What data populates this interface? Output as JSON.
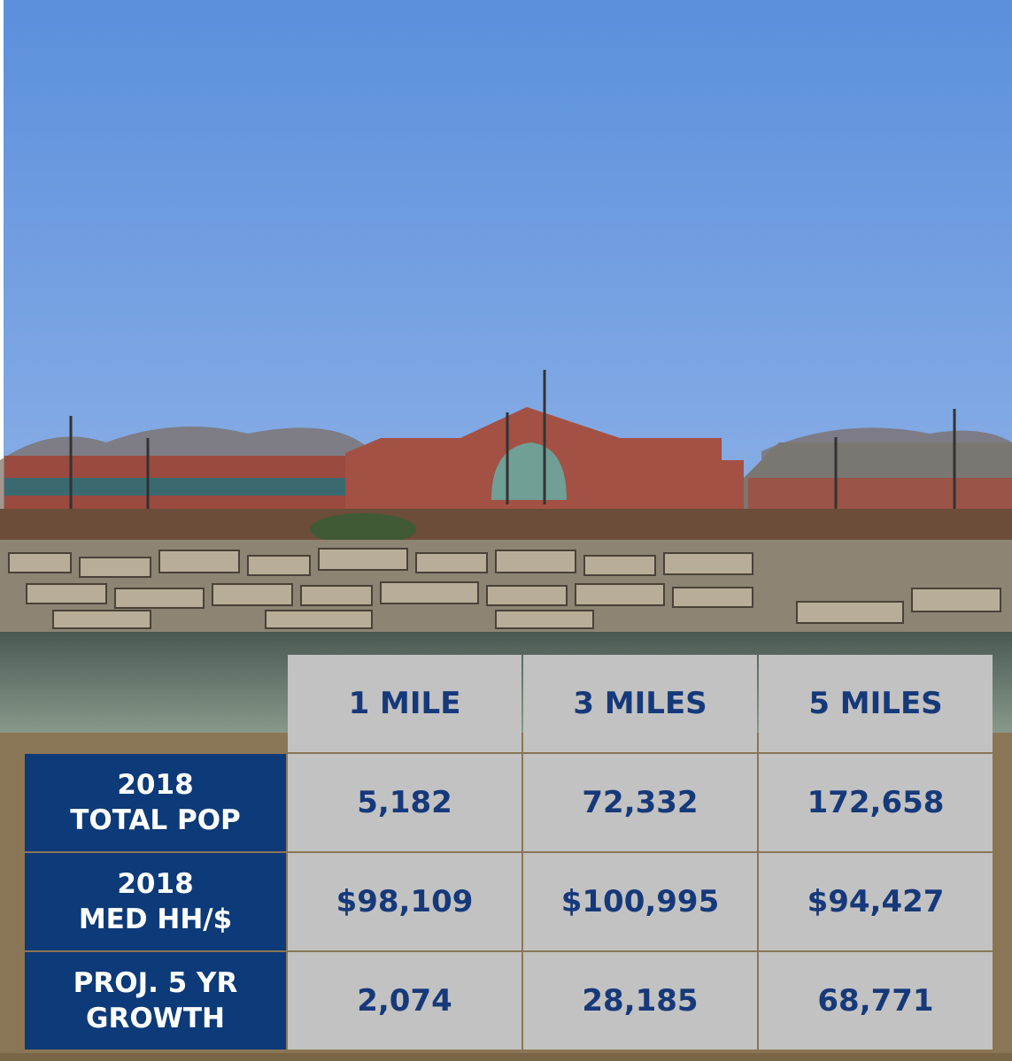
{
  "table": {
    "columns": [
      "1 MILE",
      "3 MILES",
      "5 MILES"
    ],
    "rows": [
      {
        "label": [
          "2018",
          "TOTAL POP"
        ],
        "values": [
          "5,182",
          "72,332",
          "172,658"
        ]
      },
      {
        "label": [
          "2018",
          "MED HH/$"
        ],
        "values": [
          "$98,109",
          "$100,995",
          "$94,427"
        ]
      },
      {
        "label": [
          "PROJ. 5 YR",
          "GROWTH"
        ],
        "values": [
          "2,074",
          "28,185",
          "68,771"
        ]
      }
    ]
  }
}
